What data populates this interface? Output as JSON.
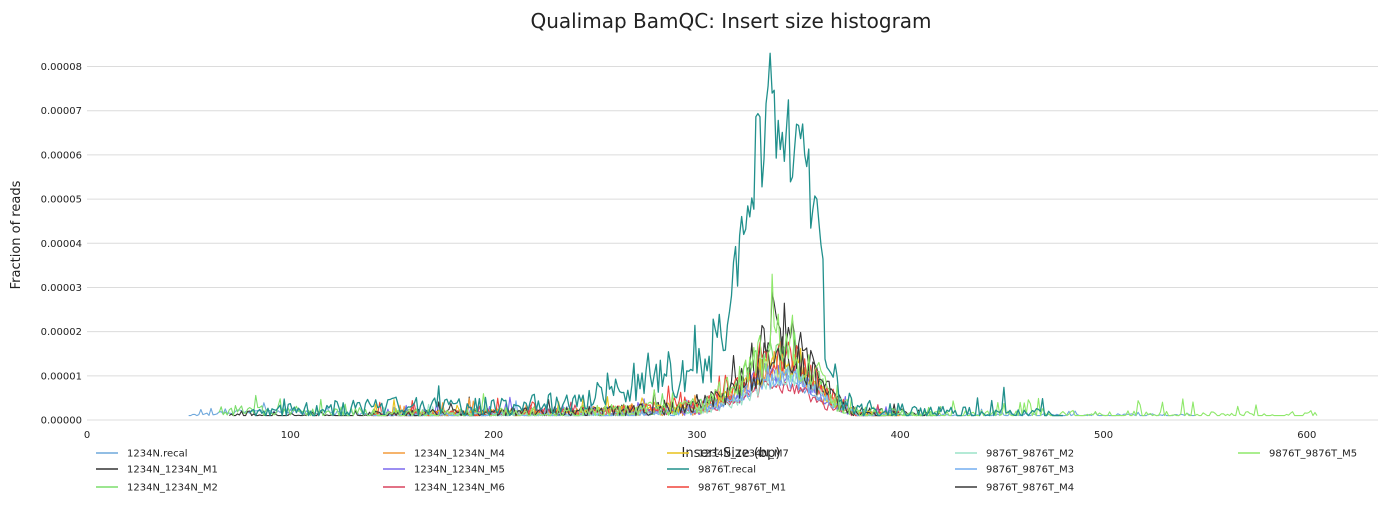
{
  "chart_data": {
    "type": "line",
    "title": "Qualimap BamQC: Insert size histogram",
    "xlabel": "Insert Size (bp)",
    "ylabel": "Fraction of reads",
    "xlim": [
      0,
      635
    ],
    "ylim": [
      0,
      8.6e-05
    ],
    "xticks": [
      0,
      100,
      200,
      300,
      400,
      500,
      600
    ],
    "yticks": [
      0,
      1e-05,
      2e-05,
      3e-05,
      4e-05,
      5e-05,
      6e-05,
      7e-05,
      8e-05
    ],
    "ytick_labels": [
      "0.00000",
      "0.00001",
      "0.00002",
      "0.00003",
      "0.00004",
      "0.00005",
      "0.00006",
      "0.00007",
      "0.00008"
    ],
    "grid": "horizontal",
    "legend_position": "bottom",
    "baseline": 1e-06,
    "series": [
      {
        "name": "1234N.recal",
        "color": "#6fa8dc",
        "x_range": [
          50,
          545
        ],
        "points": [
          [
            50,
            1e-06
          ],
          [
            75,
            2e-06
          ],
          [
            100,
            2e-06
          ],
          [
            150,
            1e-06
          ],
          [
            250,
            1e-06
          ],
          [
            300,
            2e-06
          ],
          [
            315,
            4e-06
          ],
          [
            325,
            7e-06
          ],
          [
            335,
            1e-05
          ],
          [
            345,
            9e-06
          ],
          [
            355,
            6e-06
          ],
          [
            365,
            4e-06
          ],
          [
            375,
            2e-06
          ],
          [
            400,
            1e-06
          ],
          [
            545,
            1e-06
          ]
        ],
        "noise": 1.2e-06
      },
      {
        "name": "1234N_1234N_M1",
        "color": "#333333",
        "x_range": [
          70,
          420
        ],
        "points": [
          [
            70,
            1e-06
          ],
          [
            200,
            1e-06
          ],
          [
            260,
            2e-06
          ],
          [
            300,
            3e-06
          ],
          [
            315,
            6e-06
          ],
          [
            325,
            1.2e-05
          ],
          [
            335,
            1.8e-05
          ],
          [
            340,
            2.1e-05
          ],
          [
            345,
            1.9e-05
          ],
          [
            355,
            1.4e-05
          ],
          [
            365,
            6e-06
          ],
          [
            375,
            2e-06
          ],
          [
            420,
            1e-06
          ]
        ],
        "noise": 3e-06
      },
      {
        "name": "1234N_1234N_M2",
        "color": "#7bde6b",
        "x_range": [
          65,
          420
        ],
        "points": [
          [
            65,
            2e-06
          ],
          [
            90,
            2e-06
          ],
          [
            200,
            1e-06
          ],
          [
            260,
            2e-06
          ],
          [
            300,
            3e-06
          ],
          [
            315,
            5e-06
          ],
          [
            325,
            1.1e-05
          ],
          [
            335,
            1.5e-05
          ],
          [
            345,
            1.4e-05
          ],
          [
            355,
            1.1e-05
          ],
          [
            365,
            5e-06
          ],
          [
            375,
            2e-06
          ],
          [
            420,
            1e-06
          ]
        ],
        "noise": 3e-06
      },
      {
        "name": "1234N_1234N_M4",
        "color": "#f39c3b",
        "x_range": [
          140,
          400
        ],
        "points": [
          [
            140,
            1e-06
          ],
          [
            260,
            2e-06
          ],
          [
            300,
            2e-06
          ],
          [
            320,
            6e-06
          ],
          [
            335,
            1.2e-05
          ],
          [
            345,
            1.2e-05
          ],
          [
            355,
            9e-06
          ],
          [
            365,
            4e-06
          ],
          [
            380,
            1e-06
          ],
          [
            400,
            1e-06
          ]
        ],
        "noise": 2.5e-06
      },
      {
        "name": "1234N_1234N_M5",
        "color": "#7b68ee",
        "x_range": [
          140,
          400
        ],
        "points": [
          [
            140,
            1e-06
          ],
          [
            260,
            2e-06
          ],
          [
            300,
            2e-06
          ],
          [
            320,
            5e-06
          ],
          [
            335,
            1.1e-05
          ],
          [
            345,
            1.1e-05
          ],
          [
            355,
            8e-06
          ],
          [
            365,
            4e-06
          ],
          [
            380,
            1e-06
          ],
          [
            400,
            1e-06
          ]
        ],
        "noise": 2.2e-06
      },
      {
        "name": "1234N_1234N_M6",
        "color": "#d9445f",
        "x_range": [
          140,
          400
        ],
        "points": [
          [
            140,
            1e-06
          ],
          [
            260,
            2e-06
          ],
          [
            300,
            2e-06
          ],
          [
            320,
            4e-06
          ],
          [
            335,
            8e-06
          ],
          [
            345,
            8e-06
          ],
          [
            355,
            6e-06
          ],
          [
            365,
            3e-06
          ],
          [
            380,
            1e-06
          ],
          [
            400,
            1e-06
          ]
        ],
        "noise": 2e-06
      },
      {
        "name": "1234N_1234N_M7",
        "color": "#e8c21c",
        "x_range": [
          140,
          400
        ],
        "points": [
          [
            140,
            1e-06
          ],
          [
            260,
            2e-06
          ],
          [
            300,
            3e-06
          ],
          [
            320,
            6e-06
          ],
          [
            335,
            1.2e-05
          ],
          [
            345,
            1.3e-05
          ],
          [
            355,
            1e-05
          ],
          [
            365,
            4e-06
          ],
          [
            380,
            1e-06
          ],
          [
            400,
            1e-06
          ]
        ],
        "noise": 2.5e-06
      },
      {
        "name": "9876T.recal",
        "color": "#21908c",
        "x_range": [
          80,
          480
        ],
        "points": [
          [
            80,
            1e-06
          ],
          [
            100,
            2e-06
          ],
          [
            150,
            3e-06
          ],
          [
            200,
            3e-06
          ],
          [
            240,
            4e-06
          ],
          [
            260,
            7e-06
          ],
          [
            280,
            1.1e-05
          ],
          [
            290,
            1e-05
          ],
          [
            300,
            1.2e-05
          ],
          [
            308,
            1.6e-05
          ],
          [
            315,
            2.5e-05
          ],
          [
            320,
            3.5e-05
          ],
          [
            325,
            4.7e-05
          ],
          [
            330,
            6e-05
          ],
          [
            335,
            7e-05
          ],
          [
            340,
            7.2e-05
          ],
          [
            345,
            6.8e-05
          ],
          [
            350,
            6e-05
          ],
          [
            355,
            5e-05
          ],
          [
            360,
            3.5e-05
          ],
          [
            365,
            1.5e-05
          ],
          [
            370,
            6e-06
          ],
          [
            380,
            2e-06
          ],
          [
            400,
            2e-06
          ],
          [
            480,
            1e-06
          ]
        ],
        "noise": 4e-06
      },
      {
        "name": "9876T_9876T_M1",
        "color": "#f0443a",
        "x_range": [
          140,
          400
        ],
        "points": [
          [
            140,
            1e-06
          ],
          [
            260,
            2e-06
          ],
          [
            300,
            3e-06
          ],
          [
            320,
            7e-06
          ],
          [
            335,
            1.3e-05
          ],
          [
            345,
            1.4e-05
          ],
          [
            355,
            1.1e-05
          ],
          [
            365,
            5e-06
          ],
          [
            380,
            1e-06
          ],
          [
            400,
            1e-06
          ]
        ],
        "noise": 2.8e-06
      },
      {
        "name": "9876T_9876T_M2",
        "color": "#9be3c8",
        "x_range": [
          140,
          400
        ],
        "points": [
          [
            140,
            1e-06
          ],
          [
            260,
            1e-06
          ],
          [
            300,
            2e-06
          ],
          [
            320,
            4e-06
          ],
          [
            335,
            9e-06
          ],
          [
            345,
            1e-05
          ],
          [
            355,
            8e-06
          ],
          [
            365,
            4e-06
          ],
          [
            380,
            1e-06
          ],
          [
            400,
            1e-06
          ]
        ],
        "noise": 2e-06
      },
      {
        "name": "9876T_9876T_M3",
        "color": "#74aef0",
        "x_range": [
          140,
          400
        ],
        "points": [
          [
            140,
            1e-06
          ],
          [
            260,
            1e-06
          ],
          [
            300,
            2e-06
          ],
          [
            320,
            5e-06
          ],
          [
            335,
            1e-05
          ],
          [
            345,
            1e-05
          ],
          [
            355,
            8e-06
          ],
          [
            365,
            4e-06
          ],
          [
            380,
            1e-06
          ],
          [
            400,
            1e-06
          ]
        ],
        "noise": 2.2e-06
      },
      {
        "name": "9876T_9876T_M4",
        "color": "#3a3a3a",
        "x_range": [
          140,
          400
        ],
        "points": [
          [
            140,
            1e-06
          ],
          [
            260,
            2e-06
          ],
          [
            300,
            3e-06
          ],
          [
            320,
            7e-06
          ],
          [
            335,
            1.4e-05
          ],
          [
            345,
            1.5e-05
          ],
          [
            355,
            1.1e-05
          ],
          [
            365,
            5e-06
          ],
          [
            380,
            1e-06
          ],
          [
            400,
            1e-06
          ]
        ],
        "noise": 3e-06
      },
      {
        "name": "9876T_9876T_M5",
        "color": "#8ee86a",
        "x_range": [
          140,
          605
        ],
        "points": [
          [
            140,
            1e-06
          ],
          [
            260,
            2e-06
          ],
          [
            300,
            3e-06
          ],
          [
            320,
            8e-06
          ],
          [
            335,
            1.6e-05
          ],
          [
            340,
            2e-05
          ],
          [
            345,
            1.7e-05
          ],
          [
            355,
            1.2e-05
          ],
          [
            365,
            5e-06
          ],
          [
            380,
            1e-06
          ],
          [
            605,
            1e-06
          ]
        ],
        "noise": 3.5e-06
      }
    ],
    "peaks": [
      {
        "series": "9876T.recal",
        "x": 336,
        "y": 8.3e-05
      },
      {
        "series": "9876T_9876T_M5",
        "x": 337,
        "y": 3.3e-05
      },
      {
        "series": "1234N_1234N_M1",
        "x": 337,
        "y": 2.9e-05
      }
    ]
  }
}
